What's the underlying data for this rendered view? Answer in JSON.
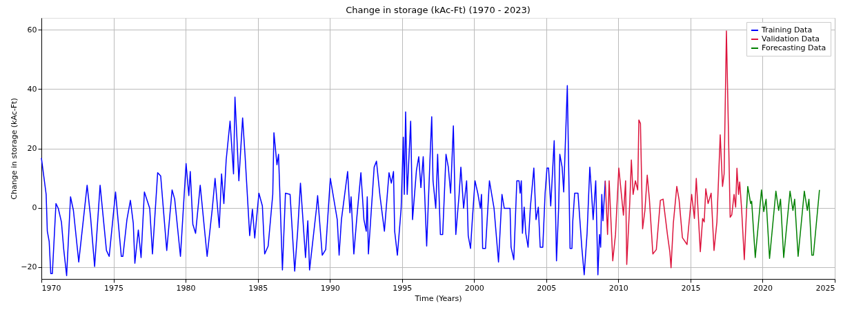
{
  "chart_data": {
    "type": "line",
    "title": "Change in storage (kAc-Ft) (1970 - 2023)",
    "xlabel": "Time (Years)",
    "ylabel": "Change in storage (kAc-Ft)",
    "xlim": [
      1970,
      2025
    ],
    "xticks": [
      1970,
      1975,
      1980,
      1985,
      1990,
      1995,
      2000,
      2005,
      2010,
      2015,
      2020,
      2025
    ],
    "ylim": [
      -24,
      64
    ],
    "yticks": [
      -20,
      0,
      20,
      40,
      60
    ],
    "grid": true,
    "legend": "top right",
    "marker": "none",
    "line_style": "solid",
    "series": [
      {
        "name": "Training Data",
        "color": "#0000ff",
        "x": [
          1970.0,
          1970.33,
          1970.41,
          1970.54,
          1970.65,
          1970.76,
          1971.01,
          1971.17,
          1971.39,
          1971.55,
          1971.75,
          1972.02,
          1972.22,
          1972.59,
          1973.17,
          1973.41,
          1973.69,
          1974.07,
          1974.51,
          1974.7,
          1975.14,
          1975.54,
          1975.65,
          1975.93,
          1976.17,
          1976.37,
          1976.48,
          1976.72,
          1976.91,
          1977.14,
          1977.51,
          1977.7,
          1978.06,
          1978.27,
          1978.69,
          1979.06,
          1979.24,
          1979.64,
          1980.03,
          1980.22,
          1980.32,
          1980.5,
          1980.69,
          1981.01,
          1981.49,
          1981.85,
          1982.04,
          1982.33,
          1982.49,
          1982.65,
          1982.81,
          1983.08,
          1983.32,
          1983.42,
          1983.56,
          1983.69,
          1983.95,
          1984.12,
          1984.44,
          1984.63,
          1984.79,
          1985.08,
          1985.32,
          1985.48,
          1985.72,
          1986.04,
          1986.12,
          1986.33,
          1986.44,
          1986.71,
          1986.92,
          1987.24,
          1987.56,
          1987.76,
          1987.96,
          1988.31,
          1988.47,
          1988.59,
          1989.07,
          1989.15,
          1989.47,
          1989.71,
          1990.03,
          1990.51,
          1990.64,
          1990.8,
          1991.23,
          1991.39,
          1991.47,
          1991.66,
          1991.87,
          1992.15,
          1992.36,
          1992.52,
          1992.59,
          1992.67,
          1993.07,
          1993.23,
          1993.47,
          1993.78,
          1994.1,
          1994.26,
          1994.41,
          1994.49,
          1994.68,
          1994.94,
          1995.09,
          1995.16,
          1995.25,
          1995.36,
          1995.6,
          1995.73,
          1996.0,
          1996.16,
          1996.31,
          1996.47,
          1996.71,
          1996.95,
          1997.06,
          1997.15,
          1997.34,
          1997.47,
          1997.66,
          1997.82,
          1997.94,
          1998.05,
          1998.21,
          1998.37,
          1998.56,
          1998.73,
          1998.96,
          1999.08,
          1999.27,
          1999.48,
          1999.59,
          1999.75,
          1999.87,
          2000.06,
          2000.27,
          2000.43,
          2000.51,
          2000.59,
          2000.79,
          2001.06,
          2001.38,
          2001.69,
          2001.93,
          2002.09,
          2002.49,
          2002.56,
          2002.75,
          2002.96,
          2003.11,
          2003.19,
          2003.27,
          2003.35,
          2003.47,
          2003.58,
          2003.74,
          2003.9,
          2004.14,
          2004.29,
          2004.45,
          2004.58,
          2004.76,
          2004.92,
          2005.05,
          2005.16,
          2005.31,
          2005.55,
          2005.71,
          2005.86,
          2005.94,
          2006.1,
          2006.21,
          2006.46,
          2006.65,
          2006.78,
          2006.84,
          2006.97,
          2007.2,
          2007.47,
          2007.63,
          2007.83,
          2008.02,
          2008.14,
          2008.25,
          2008.43,
          2008.58,
          2008.69,
          2008.77,
          2008.85,
          2008.93,
          2009.09
        ],
        "values": [
          16.8,
          4.5,
          -7.9,
          -11.4,
          -22.2,
          -22.2,
          1.4,
          -0.2,
          -4.8,
          -14.1,
          -22.9,
          3.7,
          -0.9,
          -18.3,
          7.6,
          -3.2,
          -19.8,
          7.6,
          -14.4,
          -16.4,
          5.3,
          -16.4,
          -16.4,
          -4.0,
          2.5,
          -5.2,
          -18.7,
          -7.5,
          -16.8,
          5.3,
          -0.2,
          -15.6,
          11.8,
          10.7,
          -14.4,
          6.0,
          2.9,
          -16.4,
          14.9,
          4.1,
          12.2,
          -5.6,
          -8.6,
          7.6,
          -16.4,
          -0.2,
          9.9,
          -6.7,
          11.4,
          1.4,
          16.1,
          29.2,
          11.4,
          37.3,
          23.0,
          9.1,
          30.3,
          17.6,
          -9.4,
          -0.5,
          -10.2,
          4.9,
          0.6,
          -15.6,
          -12.9,
          4.5,
          25.3,
          14.5,
          18.0,
          -21.0,
          4.9,
          4.5,
          -21.4,
          -8.3,
          8.3,
          -16.8,
          -4.4,
          -21.0,
          -0.2,
          4.1,
          -16.0,
          -14.1,
          9.9,
          -4.0,
          -16.0,
          -4.0,
          12.2,
          -1.7,
          3.7,
          -15.6,
          -3.2,
          11.8,
          -4.0,
          -7.9,
          3.7,
          -15.6,
          13.7,
          15.7,
          4.1,
          -7.9,
          11.8,
          8.3,
          12.2,
          -7.9,
          -16.0,
          -0.2,
          23.8,
          4.5,
          32.3,
          4.5,
          29.2,
          -4.0,
          12.6,
          17.2,
          6.8,
          17.2,
          -12.9,
          17.6,
          30.7,
          9.1,
          -0.2,
          18.0,
          -9.0,
          -9.0,
          4.9,
          18.0,
          13.7,
          4.9,
          27.6,
          -9.0,
          4.5,
          13.7,
          -0.2,
          9.1,
          -9.4,
          -13.7,
          -4.4,
          9.1,
          4.5,
          -0.2,
          4.5,
          -13.7,
          -13.7,
          9.1,
          -0.2,
          -18.3,
          4.5,
          -0.2,
          -0.2,
          -13.3,
          -17.5,
          9.1,
          9.1,
          4.9,
          9.1,
          -8.6,
          0.2,
          -8.6,
          -13.3,
          0.2,
          13.4,
          -4.0,
          0.2,
          -13.3,
          -13.3,
          4.9,
          13.4,
          13.4,
          0.6,
          22.6,
          -17.9,
          0.2,
          18.0,
          13.7,
          5.3,
          41.2,
          -13.7,
          -13.7,
          -4.4,
          4.9,
          4.9,
          -13.7,
          -22.6,
          -8.6,
          13.7,
          4.9,
          -4.0,
          9.1,
          -22.6,
          -9.0,
          -13.3,
          4.5,
          -4.4,
          9.1
        ]
      },
      {
        "name": "Validation Data",
        "color": "#dc143c",
        "x": [
          2009.09,
          2009.25,
          2009.36,
          2009.61,
          2009.8,
          2010.03,
          2010.35,
          2010.5,
          2010.58,
          2010.79,
          2010.9,
          2011.02,
          2011.18,
          2011.34,
          2011.42,
          2011.53,
          2011.68,
          2011.84,
          2012.0,
          2012.15,
          2012.39,
          2012.63,
          2012.91,
          2013.1,
          2013.41,
          2013.57,
          2013.65,
          2013.81,
          2014.05,
          2014.21,
          2014.44,
          2014.76,
          2015.08,
          2015.27,
          2015.4,
          2015.68,
          2015.84,
          2015.95,
          2016.06,
          2016.22,
          2016.43,
          2016.63,
          2016.83,
          2017.06,
          2017.22,
          2017.33,
          2017.49,
          2017.75,
          2017.86,
          2018.02,
          2018.13,
          2018.22,
          2018.33,
          2018.41,
          2018.54,
          2018.73,
          2018.89
        ],
        "values": [
          9.1,
          -9.0,
          9.1,
          -17.9,
          -9.0,
          13.4,
          -2.5,
          9.1,
          -19.1,
          1.8,
          16.1,
          4.5,
          9.1,
          6.0,
          29.6,
          28.4,
          -7.1,
          -0.9,
          11.0,
          2.9,
          -15.6,
          -14.1,
          2.5,
          2.9,
          -9.4,
          -15.0,
          -20.2,
          -5.2,
          7.2,
          2.6,
          -10.1,
          -12.4,
          4.5,
          -3.6,
          9.9,
          -14.8,
          -3.6,
          -4.8,
          6.4,
          1.4,
          4.9,
          -14.4,
          -4.8,
          24.6,
          7.2,
          11.4,
          59.6,
          -3.2,
          -2.4,
          4.5,
          0.2,
          13.3,
          4.5,
          8.7,
          -0.2,
          -17.5,
          -0.2
        ]
      },
      {
        "name": "Forecasting Data",
        "color": "#008000",
        "x": [
          2018.89,
          2018.97,
          2019.17,
          2019.24,
          2019.49,
          2019.92,
          2020.08,
          2020.24,
          2020.48,
          2020.92,
          2021.11,
          2021.24,
          2021.46,
          2021.9,
          2022.1,
          2022.22,
          2022.46,
          2022.89,
          2023.1,
          2023.21,
          2023.41,
          2023.52,
          2023.94
        ],
        "values": [
          -0.2,
          7.2,
          1.4,
          2.2,
          -16.8,
          6.0,
          -1.3,
          2.9,
          -17.1,
          5.6,
          -0.9,
          2.9,
          -16.8,
          5.6,
          -0.9,
          2.9,
          -16.4,
          5.6,
          -0.9,
          2.9,
          -16.0,
          -16.0,
          6.0
        ]
      }
    ]
  }
}
